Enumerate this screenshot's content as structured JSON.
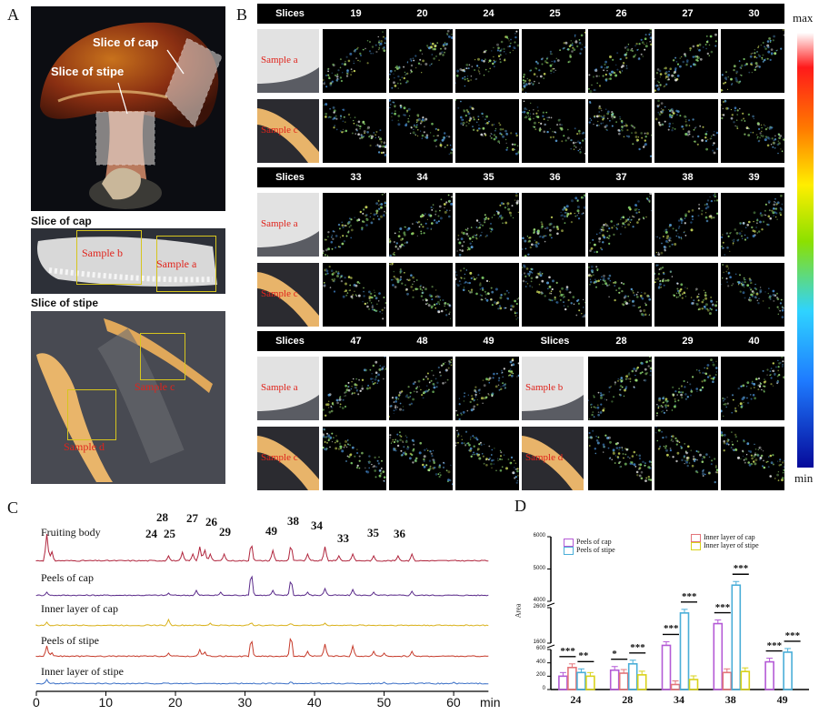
{
  "panels": {
    "a": "A",
    "b": "B",
    "c": "C",
    "d": "D"
  },
  "panel_a": {
    "callout_cap": "Slice of cap",
    "callout_stipe": "Slice of stipe",
    "cap_section_title": "Slice of cap",
    "stipe_section_title": "Slice of stipe",
    "cap_samples": [
      "Sample b",
      "Sample a"
    ],
    "stipe_samples": [
      "Sample c",
      "Sample d"
    ]
  },
  "panel_b": {
    "colorbar_max": "max",
    "colorbar_min": "min",
    "groups": [
      {
        "headers": [
          "Slices",
          "19",
          "20",
          "24",
          "25",
          "26",
          "27",
          "30"
        ],
        "rows": [
          "Sample a",
          "Sample c"
        ]
      },
      {
        "headers": [
          "Slices",
          "33",
          "34",
          "35",
          "36",
          "37",
          "38",
          "39"
        ],
        "rows": [
          "Sample a",
          "Sample c"
        ]
      },
      {
        "headers": [
          "Slices",
          "47",
          "48",
          "49",
          "Slices",
          "28",
          "29",
          "40"
        ],
        "rows": [
          "Sample a",
          "Sample c"
        ],
        "rows_right": [
          "Sample b",
          "Sample d"
        ]
      }
    ]
  },
  "panel_c": {
    "traces": [
      {
        "label": "Fruiting body",
        "color": "#b0253d"
      },
      {
        "label": "Peels of cap",
        "color": "#5a2a8a"
      },
      {
        "label": "Inner layer of cap",
        "color": "#d9b11a"
      },
      {
        "label": "Peels of stipe",
        "color": "#c63a2a"
      },
      {
        "label": "Inner layer of stipe",
        "color": "#3a6fc6"
      }
    ],
    "peaks": [
      "28",
      "27",
      "26",
      "24",
      "25",
      "29",
      "49",
      "38",
      "34",
      "33",
      "35",
      "36"
    ],
    "x_ticks": [
      "0",
      "10",
      "20",
      "30",
      "40",
      "50",
      "60"
    ],
    "x_unit": "min"
  },
  "chart_data": {
    "type": "bar",
    "title": "",
    "ylabel": "Area",
    "xlabel": "",
    "categories": [
      "24",
      "28",
      "34",
      "38",
      "49"
    ],
    "series": [
      {
        "name": "Peels of cap",
        "color": "#b45ad6",
        "values": [
          200,
          290,
          1250,
          2150,
          415
        ]
      },
      {
        "name": "Peels of stipe",
        "color": "#4aaed8",
        "values": [
          255,
          385,
          2450,
          4500,
          560
        ]
      },
      {
        "name": "Inner layer of cap",
        "color": "#e3757a",
        "values": [
          330,
          245,
          75,
          255,
          null
        ]
      },
      {
        "name": "Inner layer of stipe",
        "color": "#d9d21a",
        "values": [
          200,
          220,
          150,
          270,
          null
        ]
      }
    ],
    "y_ticks": [
      "0",
      "200",
      "400",
      "600",
      "1600",
      "2600",
      "4000",
      "5000",
      "6000"
    ],
    "ylim": [
      0,
      6000
    ],
    "axis_breaks": [
      [
        600,
        1600
      ],
      [
        2600,
        4000
      ]
    ],
    "significance": [
      {
        "category": "24",
        "pair": "left",
        "label": "***"
      },
      {
        "category": "24",
        "pair": "right",
        "label": "**"
      },
      {
        "category": "28",
        "pair": "left",
        "label": "*"
      },
      {
        "category": "28",
        "pair": "right",
        "label": "***"
      },
      {
        "category": "34",
        "pair": "left",
        "label": "***"
      },
      {
        "category": "34",
        "pair": "right",
        "label": "***"
      },
      {
        "category": "38",
        "pair": "left",
        "label": "***"
      },
      {
        "category": "38",
        "pair": "right",
        "label": "***"
      },
      {
        "category": "49",
        "pair": "left",
        "label": "***"
      },
      {
        "category": "49",
        "pair": "right",
        "label": "***"
      }
    ]
  }
}
